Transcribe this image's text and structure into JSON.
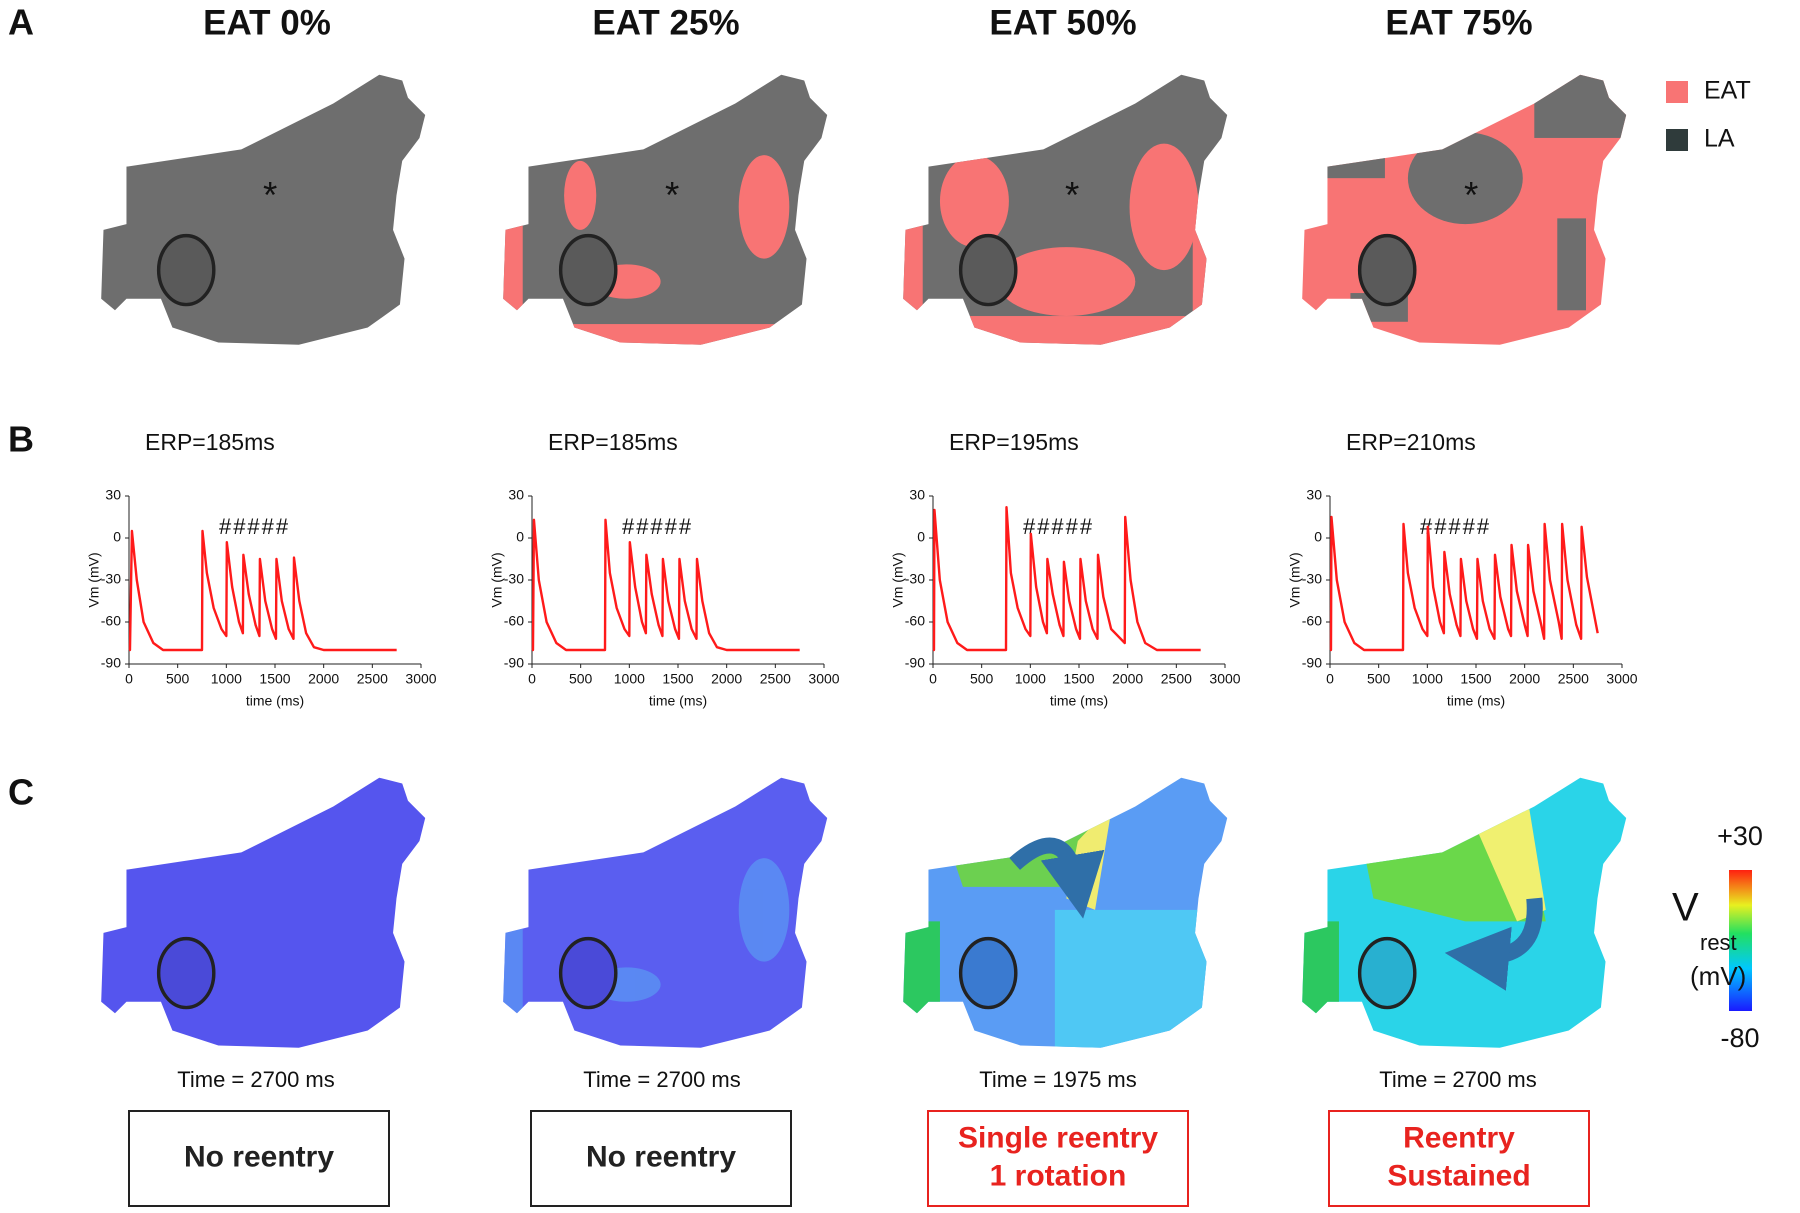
{
  "panel_labels": [
    "A",
    "B",
    "C"
  ],
  "columns": [
    "EAT 0%",
    "EAT 25%",
    "EAT 50%",
    "EAT 75%"
  ],
  "legend": [
    {
      "label": "EAT",
      "color": "#f87474"
    },
    {
      "label": "LA",
      "color": "#2f3b3b"
    }
  ],
  "marker": "*",
  "chart_data": [
    {
      "type": "line",
      "title": "ERP=185ms",
      "annotation": "#####",
      "x_label": "time (ms)",
      "y_label": "Vm (mV)",
      "color": "#ff1a1a",
      "x": [
        0,
        10,
        30,
        80,
        150,
        250,
        350,
        750,
        755,
        800,
        870,
        950,
        1000,
        1005,
        1060,
        1130,
        1170,
        1175,
        1230,
        1300,
        1340,
        1345,
        1400,
        1470,
        1510,
        1515,
        1570,
        1640,
        1690,
        1695,
        1750,
        1820,
        1900,
        2000,
        2750
      ],
      "values": [
        -80,
        -80,
        5,
        -30,
        -60,
        -75,
        -80,
        -80,
        5,
        -25,
        -50,
        -65,
        -70,
        -3,
        -35,
        -60,
        -68,
        -12,
        -40,
        -62,
        -70,
        -15,
        -45,
        -65,
        -72,
        -15,
        -45,
        -65,
        -72,
        -14,
        -45,
        -68,
        -78,
        -80,
        -80
      ],
      "xlim": [
        0,
        3000
      ],
      "xticks": [
        0,
        500,
        1000,
        1500,
        2000,
        2500,
        3000
      ],
      "ylim": [
        -90,
        30
      ],
      "yticks": [
        -90,
        -60,
        -30,
        0,
        30
      ]
    },
    {
      "type": "line",
      "title": "ERP=185ms",
      "annotation": "#####",
      "x_label": "time (ms)",
      "y_label": "Vm (mV)",
      "color": "#ff1a1a",
      "x": [
        0,
        10,
        20,
        70,
        150,
        250,
        350,
        750,
        755,
        800,
        870,
        950,
        1000,
        1005,
        1060,
        1130,
        1170,
        1175,
        1230,
        1300,
        1340,
        1345,
        1400,
        1470,
        1510,
        1515,
        1570,
        1640,
        1690,
        1695,
        1750,
        1820,
        1900,
        2000,
        2750
      ],
      "values": [
        -80,
        -80,
        13,
        -30,
        -60,
        -75,
        -80,
        -80,
        13,
        -25,
        -50,
        -65,
        -70,
        -3,
        -35,
        -60,
        -68,
        -12,
        -40,
        -62,
        -70,
        -15,
        -45,
        -65,
        -72,
        -15,
        -45,
        -65,
        -72,
        -15,
        -45,
        -68,
        -78,
        -80,
        -80
      ],
      "xlim": [
        0,
        3000
      ],
      "xticks": [
        0,
        500,
        1000,
        1500,
        2000,
        2500,
        3000
      ],
      "ylim": [
        -90,
        30
      ],
      "yticks": [
        -90,
        -60,
        -30,
        0,
        30
      ]
    },
    {
      "type": "line",
      "title": "ERP=195ms",
      "annotation": "#####",
      "x_label": "time (ms)",
      "y_label": "Vm (mV)",
      "color": "#ff1a1a",
      "x": [
        0,
        10,
        15,
        70,
        150,
        250,
        350,
        750,
        755,
        800,
        870,
        950,
        1000,
        1005,
        1060,
        1130,
        1170,
        1175,
        1230,
        1300,
        1340,
        1345,
        1400,
        1470,
        1510,
        1515,
        1570,
        1640,
        1690,
        1695,
        1750,
        1830,
        1970,
        1975,
        2030,
        2100,
        2180,
        2300,
        2750
      ],
      "values": [
        -80,
        -80,
        20,
        -30,
        -60,
        -75,
        -80,
        -80,
        22,
        -25,
        -50,
        -65,
        -70,
        3,
        -35,
        -60,
        -68,
        -15,
        -40,
        -62,
        -70,
        -17,
        -45,
        -65,
        -72,
        -15,
        -45,
        -65,
        -72,
        -12,
        -42,
        -65,
        -75,
        15,
        -30,
        -60,
        -75,
        -80,
        -80
      ],
      "xlim": [
        0,
        3000
      ],
      "xticks": [
        0,
        500,
        1000,
        1500,
        2000,
        2500,
        3000
      ],
      "ylim": [
        -90,
        30
      ],
      "yticks": [
        -90,
        -60,
        -30,
        0,
        30
      ]
    },
    {
      "type": "line",
      "title": "ERP=210ms",
      "annotation": "#####",
      "x_label": "time (ms)",
      "y_label": "Vm (mV)",
      "color": "#ff1a1a",
      "x": [
        0,
        10,
        15,
        70,
        150,
        250,
        350,
        750,
        755,
        800,
        870,
        950,
        1000,
        1005,
        1060,
        1130,
        1170,
        1175,
        1230,
        1300,
        1340,
        1345,
        1400,
        1470,
        1510,
        1515,
        1570,
        1640,
        1690,
        1695,
        1750,
        1830,
        1860,
        1865,
        1920,
        2000,
        2030,
        2035,
        2090,
        2170,
        2200,
        2205,
        2260,
        2350,
        2380,
        2385,
        2440,
        2530,
        2580,
        2585,
        2640,
        2750
      ],
      "values": [
        -80,
        -80,
        15,
        -30,
        -60,
        -75,
        -80,
        -80,
        10,
        -25,
        -50,
        -65,
        -70,
        8,
        -35,
        -60,
        -68,
        -10,
        -40,
        -62,
        -70,
        -15,
        -45,
        -65,
        -72,
        -15,
        -45,
        -65,
        -72,
        -12,
        -42,
        -65,
        -70,
        -5,
        -38,
        -62,
        -70,
        -5,
        -38,
        -62,
        -72,
        10,
        -30,
        -60,
        -72,
        10,
        -30,
        -62,
        -72,
        8,
        -28,
        -68
      ],
      "xlim": [
        0,
        3000
      ],
      "xticks": [
        0,
        500,
        1000,
        1500,
        2000,
        2500,
        3000
      ],
      "ylim": [
        -90,
        30
      ],
      "yticks": [
        -90,
        -60,
        -30,
        0,
        30
      ]
    }
  ],
  "captions": [
    "Time = 2700 ms",
    "Time = 2700 ms",
    "Time = 1975 ms",
    "Time = 2700 ms"
  ],
  "outcomes": [
    {
      "lines": [
        "No reentry"
      ],
      "color": "#222222"
    },
    {
      "lines": [
        "No reentry"
      ],
      "color": "#222222"
    },
    {
      "lines": [
        "Single reentry",
        "1 rotation"
      ],
      "color": "#e8231f"
    },
    {
      "lines": [
        "Reentry",
        "Sustained"
      ],
      "color": "#e8231f"
    }
  ],
  "colorbar": {
    "max": "+30",
    "min": "-80",
    "label": "V",
    "subscript": "rest",
    "unit": "(mV)"
  }
}
